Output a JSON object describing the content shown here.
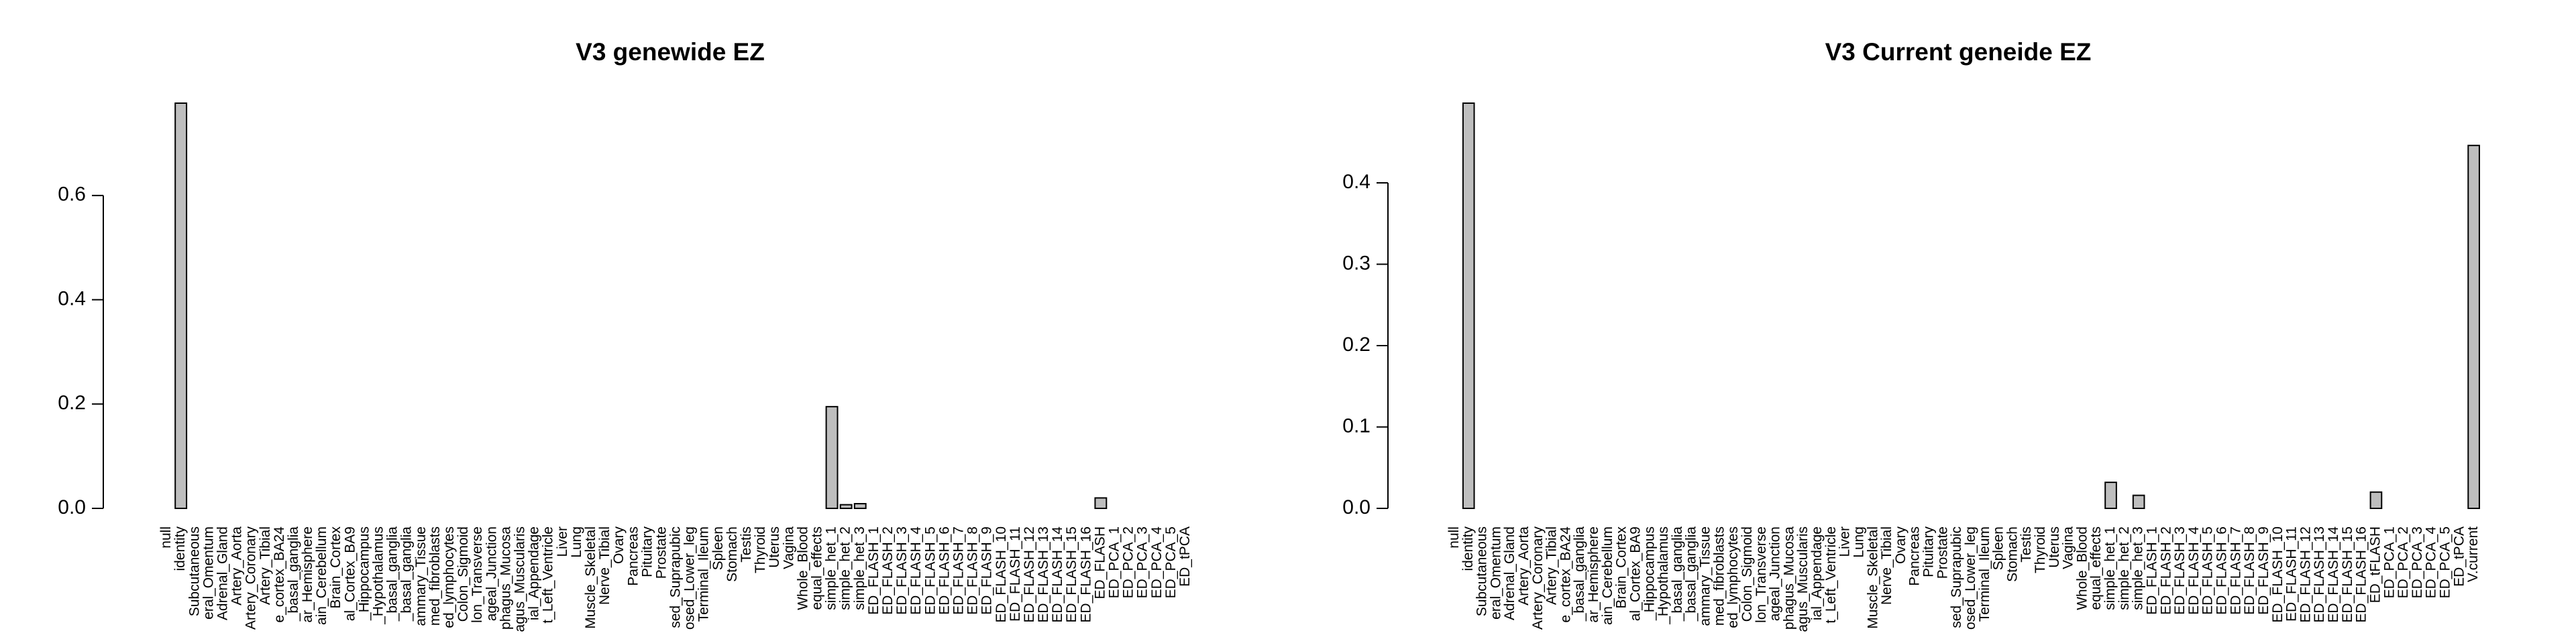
{
  "chart_data": [
    {
      "type": "bar",
      "title": "V3 genewide EZ",
      "color": "#bebebe",
      "categories": [
        "null",
        "identity",
        "Subcutaneous",
        "eral_Omentum",
        "Adrenal_Gland",
        "Artery_Aorta",
        "Artery_Coronary",
        "Artery_Tibial",
        "e_cortex_BA24",
        "_basal_ganglia",
        "ar_Hemisphere",
        "ain_Cerebellum",
        "Brain_Cortex",
        "al_Cortex_BA9",
        "_Hippocampus",
        "_Hypothalamus",
        "_basal_ganglia",
        "_basal_ganglia",
        "ammary_Tissue",
        "med_fibroblasts",
        "ed_lymphocytes",
        "Colon_Sigmoid",
        "lon_Transverse",
        "ageal_Junction",
        "phagus_Mucosa",
        "agus_Muscularis",
        "ial_Appendage",
        "t_Left_Ventricle",
        "Liver",
        "Lung",
        "Muscle_Skeletal",
        "Nerve_Tibial",
        "Ovary",
        "Pancreas",
        "Pituitary",
        "Prostate",
        "sed_Suprapubic",
        "osed_Lower_leg",
        "Terminal_Ileum",
        "Spleen",
        "Stomach",
        "Testis",
        "Thyroid",
        "Uterus",
        "Vagina",
        "Whole_Blood",
        "equal_effects",
        "simple_het_1",
        "simple_het_2",
        "simple_het_3",
        "ED_FLASH_1",
        "ED_FLASH_2",
        "ED_FLASH_3",
        "ED_FLASH_4",
        "ED_FLASH_5",
        "ED_FLASH_6",
        "ED_FLASH_7",
        "ED_FLASH_8",
        "ED_FLASH_9",
        "ED_FLASH_10",
        "ED_FLASH_11",
        "ED_FLASH_12",
        "ED_FLASH_13",
        "ED_FLASH_14",
        "ED_FLASH_15",
        "ED_FLASH_16",
        "ED_FLASH",
        "ED_PCA_1",
        "ED_PCA_2",
        "ED_PCA_3",
        "ED_PCA_4",
        "ED_PCA_5",
        "ED_tPCA"
      ],
      "values": [
        0,
        0.777,
        0,
        0,
        0,
        0,
        0,
        0,
        0,
        0,
        0,
        0,
        0,
        0,
        0,
        0,
        0,
        0,
        0,
        0,
        0,
        0,
        0,
        0,
        0,
        0,
        0,
        0,
        0,
        0,
        0,
        0,
        0,
        0,
        0,
        0,
        0,
        0,
        0,
        0,
        0,
        0,
        0,
        0,
        0,
        0,
        0,
        0.195,
        0.007,
        0.009,
        0,
        0,
        0,
        0,
        0,
        0,
        0,
        0,
        0,
        0,
        0,
        0,
        0,
        0,
        0,
        0,
        0.02,
        0,
        0,
        0,
        0,
        0,
        0
      ],
      "ylim": [
        0,
        0.777
      ],
      "yticks": [
        {
          "value": 0,
          "label": "0.0"
        },
        0.2,
        0.4,
        0.6
      ]
    },
    {
      "type": "bar",
      "title": "V3 Current geneide EZ",
      "color": "#bebebe",
      "categories": [
        "null",
        "identity",
        "Subcutaneous",
        "eral_Omentum",
        "Adrenal_Gland",
        "Artery_Aorta",
        "Artery_Coronary",
        "Artery_Tibial",
        "e_cortex_BA24",
        "_basal_ganglia",
        "ar_Hemisphere",
        "ain_Cerebellum",
        "Brain_Cortex",
        "al_Cortex_BA9",
        "_Hippocampus",
        "_Hypothalamus",
        "_basal_ganglia",
        "_basal_ganglia",
        "ammary_Tissue",
        "med_fibroblasts",
        "ed_lymphocytes",
        "Colon_Sigmoid",
        "lon_Transverse",
        "ageal_Junction",
        "phagus_Mucosa",
        "agus_Muscularis",
        "ial_Appendage",
        "t_Left_Ventricle",
        "Liver",
        "Lung",
        "Muscle_Skeletal",
        "Nerve_Tibial",
        "Ovary",
        "Pancreas",
        "Pituitary",
        "Prostate",
        "sed_Suprapubic",
        "osed_Lower_leg",
        "Terminal_Ileum",
        "Spleen",
        "Stomach",
        "Testis",
        "Thyroid",
        "Uterus",
        "Vagina",
        "Whole_Blood",
        "equal_effects",
        "simple_het_1",
        "simple_het_2",
        "simple_het_3",
        "ED_FLASH_1",
        "ED_FLASH_2",
        "ED_FLASH_3",
        "ED_FLASH_4",
        "ED_FLASH_5",
        "ED_FLASH_6",
        "ED_FLASH_7",
        "ED_FLASH_8",
        "ED_FLASH_9",
        "ED_FLASH_10",
        "ED_FLASH_11",
        "ED_FLASH_12",
        "ED_FLASH_13",
        "ED_FLASH_14",
        "ED_FLASH_15",
        "ED_FLASH_16",
        "ED_tFLASH",
        "ED_PCA_1",
        "ED_PCA_2",
        "ED_PCA_3",
        "ED_PCA_4",
        "ED_PCA_5",
        "ED_tPCA",
        "V.current"
      ],
      "values": [
        0,
        0.498,
        0,
        0,
        0,
        0,
        0,
        0,
        0,
        0,
        0,
        0,
        0,
        0,
        0,
        0,
        0,
        0,
        0,
        0,
        0,
        0,
        0,
        0,
        0,
        0,
        0,
        0,
        0,
        0,
        0,
        0,
        0,
        0,
        0,
        0,
        0,
        0,
        0,
        0,
        0,
        0,
        0,
        0,
        0,
        0,
        0,
        0.032,
        0,
        0.016,
        0,
        0,
        0,
        0,
        0,
        0,
        0,
        0,
        0,
        0,
        0,
        0,
        0,
        0,
        0,
        0,
        0.02,
        0,
        0,
        0,
        0,
        0,
        0,
        0.446
      ],
      "ylim": [
        0,
        0.498
      ],
      "yticks": [
        {
          "value": 0,
          "label": "0.0"
        },
        0.1,
        0.2,
        0.3,
        0.4
      ]
    }
  ]
}
